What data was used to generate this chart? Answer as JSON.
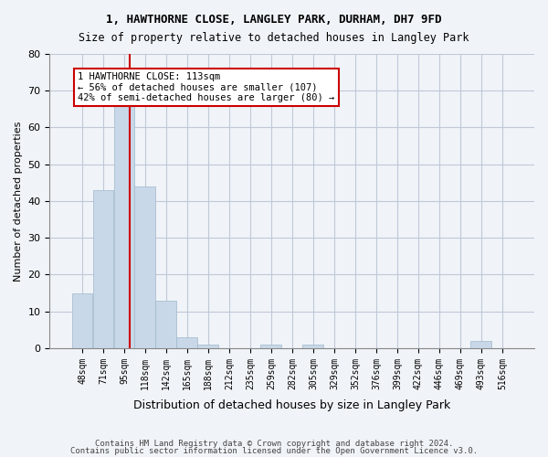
{
  "title1": "1, HAWTHORNE CLOSE, LANGLEY PARK, DURHAM, DH7 9FD",
  "title2": "Size of property relative to detached houses in Langley Park",
  "xlabel": "Distribution of detached houses by size in Langley Park",
  "ylabel": "Number of detached properties",
  "bin_labels": [
    "48sqm",
    "71sqm",
    "95sqm",
    "118sqm",
    "142sqm",
    "165sqm",
    "188sqm",
    "212sqm",
    "235sqm",
    "259sqm",
    "282sqm",
    "305sqm",
    "329sqm",
    "352sqm",
    "376sqm",
    "399sqm",
    "422sqm",
    "446sqm",
    "469sqm",
    "493sqm",
    "516sqm"
  ],
  "bar_heights": [
    15,
    43,
    67,
    44,
    13,
    3,
    1,
    0,
    0,
    1,
    0,
    1,
    0,
    0,
    0,
    0,
    0,
    0,
    0,
    2,
    0
  ],
  "bar_color": "#c8d8e8",
  "bar_edge_color": "#a0b8cc",
  "vline_x": 113,
  "vline_color": "#cc0000",
  "annotation_text": "1 HAWTHORNE CLOSE: 113sqm\n← 56% of detached houses are smaller (107)\n42% of semi-detached houses are larger (80) →",
  "annotation_box_color": "#ffffff",
  "annotation_box_edge": "#cc0000",
  "ylim": [
    0,
    80
  ],
  "yticks": [
    0,
    10,
    20,
    30,
    40,
    50,
    60,
    70,
    80
  ],
  "grid_color": "#c0c8d8",
  "footer1": "Contains HM Land Registry data © Crown copyright and database right 2024.",
  "footer2": "Contains public sector information licensed under the Open Government Licence v3.0.",
  "bg_color": "#f0f4f8",
  "bin_width": 23.5
}
